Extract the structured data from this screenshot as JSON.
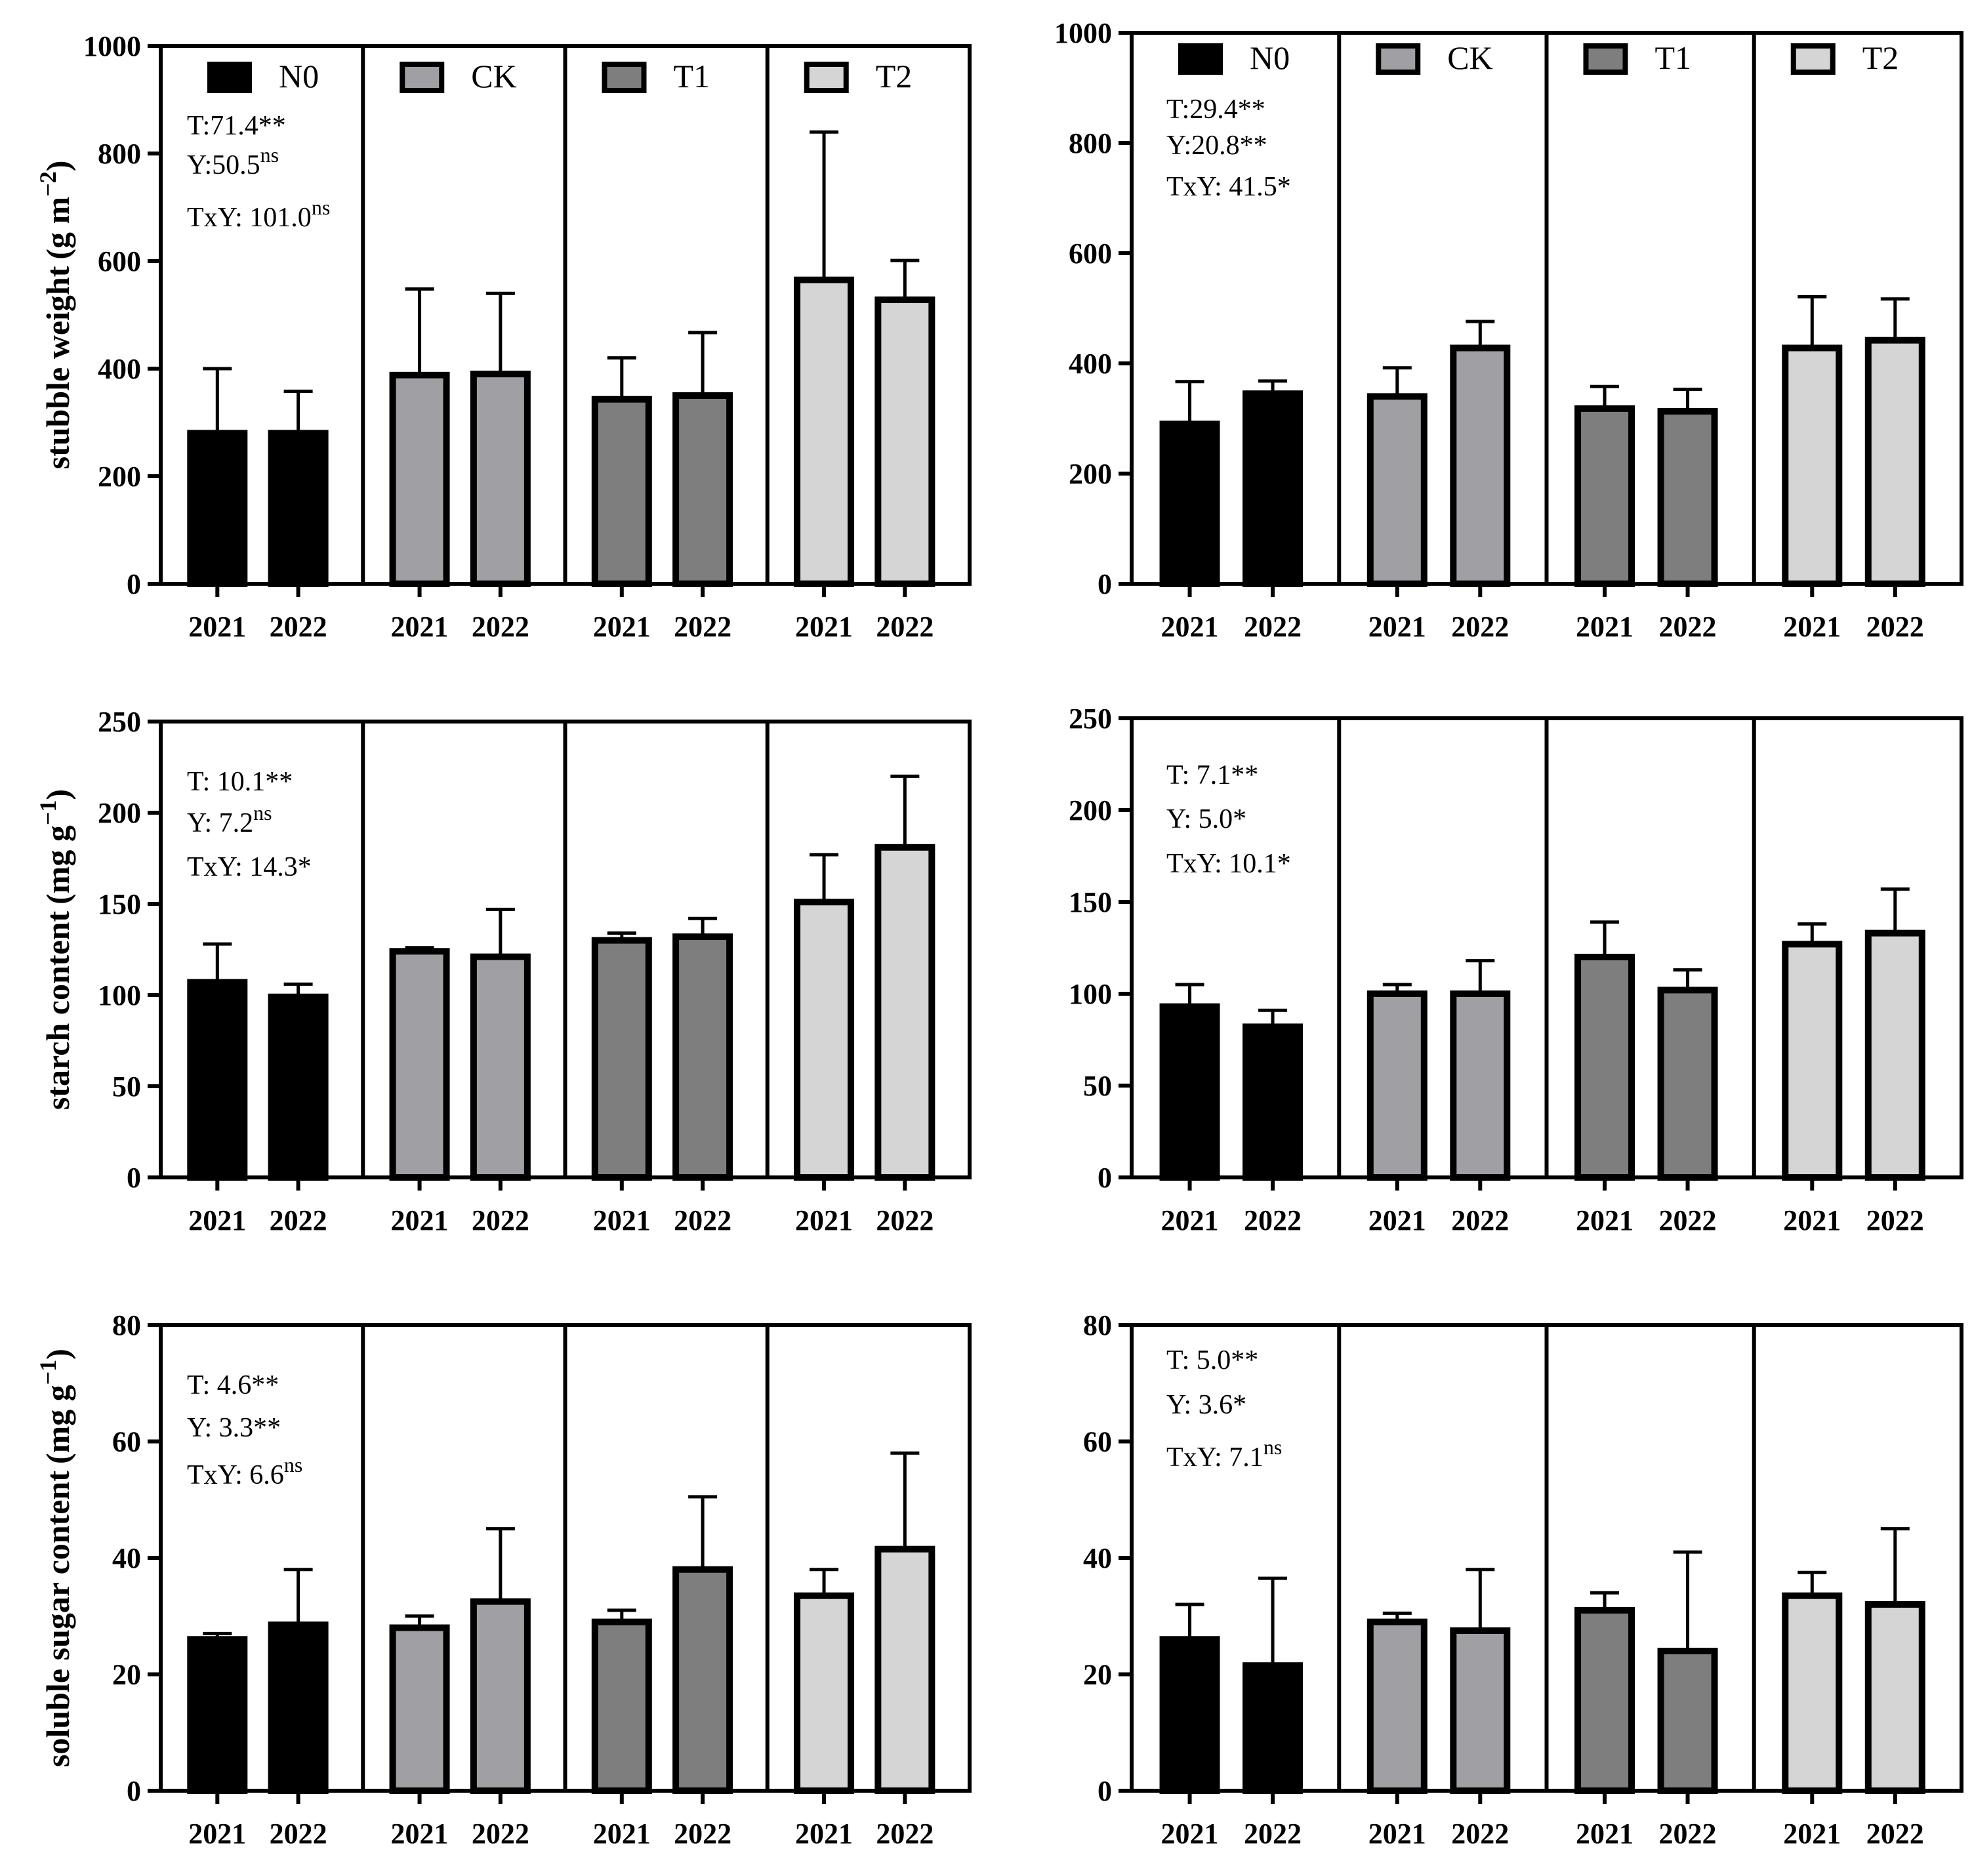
{
  "figure": {
    "group_labels": [
      "N0",
      "CK",
      "T1",
      "T2"
    ],
    "year_labels": [
      "2021",
      "2022"
    ],
    "group_colors": [
      "#000000",
      "#a0a0a4",
      "#7e7e7e",
      "#d5d5d5"
    ]
  },
  "chart_data": [
    {
      "type": "bar",
      "title": "",
      "ylabel_main": "stubble weight",
      "ylabel_unit": "(g m",
      "ylabel_sup": "−2",
      "ylabel_close": ")",
      "ylim": [
        0,
        1000
      ],
      "yticks": [
        "0",
        "200",
        "400",
        "600",
        "800",
        "1000"
      ],
      "legend": true,
      "annotations": [
        {
          "main": "T:71.4**",
          "sup": ""
        },
        {
          "main": "Y:50.5",
          "sup": "ns"
        },
        {
          "main": "TxY: 101.0",
          "sup": "ns"
        }
      ],
      "values": [
        [
          280,
          280
        ],
        [
          388,
          390
        ],
        [
          343,
          350
        ],
        [
          565,
          528
        ]
      ],
      "errors": [
        [
          120,
          78
        ],
        [
          160,
          150
        ],
        [
          77,
          117
        ],
        [
          275,
          73
        ]
      ]
    },
    {
      "type": "bar",
      "title": "",
      "ylabel_main": "",
      "ylabel_unit": "",
      "ylabel_sup": "",
      "ylabel_close": "",
      "ylim": [
        0,
        1000
      ],
      "yticks": [
        "0",
        "200",
        "400",
        "600",
        "800",
        "1000"
      ],
      "legend": true,
      "annotations": [
        {
          "main": "T:29.4**",
          "sup": ""
        },
        {
          "main": "Y:20.8**",
          "sup": ""
        },
        {
          "main": "TxY: 41.5*",
          "sup": ""
        }
      ],
      "values": [
        [
          290,
          345
        ],
        [
          340,
          428
        ],
        [
          318,
          313
        ],
        [
          428,
          442
        ]
      ],
      "errors": [
        [
          77,
          23
        ],
        [
          52,
          48
        ],
        [
          40,
          40
        ],
        [
          93,
          75
        ]
      ]
    },
    {
      "type": "bar",
      "title": "",
      "ylabel_main": "starch content",
      "ylabel_unit": "(mg g",
      "ylabel_sup": "−1",
      "ylabel_close": ")",
      "ylim": [
        0,
        250
      ],
      "yticks": [
        "0",
        "50",
        "100",
        "150",
        "200",
        "250"
      ],
      "legend": false,
      "annotations": [
        {
          "main": "T: 10.1**",
          "sup": ""
        },
        {
          "main": "Y: 7.2",
          "sup": "ns"
        },
        {
          "main": "TxY: 14.3*",
          "sup": ""
        }
      ],
      "values": [
        [
          107,
          99
        ],
        [
          124,
          121
        ],
        [
          130,
          132
        ],
        [
          151,
          181
        ]
      ],
      "errors": [
        [
          21,
          7
        ],
        [
          2,
          26
        ],
        [
          4,
          10
        ],
        [
          26,
          39
        ]
      ]
    },
    {
      "type": "bar",
      "title": "",
      "ylabel_main": "",
      "ylabel_unit": "",
      "ylabel_sup": "",
      "ylabel_close": "",
      "ylim": [
        0,
        250
      ],
      "yticks": [
        "0",
        "50",
        "100",
        "150",
        "200",
        "250"
      ],
      "legend": false,
      "annotations": [
        {
          "main": "T: 7.1**",
          "sup": ""
        },
        {
          "main": "Y: 5.0*",
          "sup": ""
        },
        {
          "main": "TxY: 10.1*",
          "sup": ""
        }
      ],
      "values": [
        [
          93,
          82
        ],
        [
          100,
          100
        ],
        [
          120,
          102
        ],
        [
          127,
          133
        ]
      ],
      "errors": [
        [
          12,
          9
        ],
        [
          5,
          18
        ],
        [
          19,
          11
        ],
        [
          11,
          24
        ]
      ]
    },
    {
      "type": "bar",
      "title": "",
      "ylabel_main": "soluble sugar content",
      "ylabel_unit": "(mg g",
      "ylabel_sup": "−1",
      "ylabel_close": ")",
      "ylim": [
        0,
        80
      ],
      "yticks": [
        "0",
        "20",
        "40",
        "60",
        "80"
      ],
      "legend": false,
      "annotations": [
        {
          "main": "T: 4.6**",
          "sup": ""
        },
        {
          "main": "Y: 3.3**",
          "sup": ""
        },
        {
          "main": "TxY: 6.6",
          "sup": "ns"
        }
      ],
      "values": [
        [
          26,
          28.5
        ],
        [
          28,
          32.5
        ],
        [
          29,
          38
        ],
        [
          33.5,
          41.5
        ]
      ],
      "errors": [
        [
          1,
          9.5
        ],
        [
          2,
          12.5
        ],
        [
          2,
          12.5
        ],
        [
          4.5,
          16.5
        ]
      ]
    },
    {
      "type": "bar",
      "title": "",
      "ylabel_main": "",
      "ylabel_unit": "",
      "ylabel_sup": "",
      "ylabel_close": "",
      "ylim": [
        0,
        80
      ],
      "yticks": [
        "0",
        "20",
        "40",
        "60",
        "80"
      ],
      "legend": false,
      "annotations": [
        {
          "main": "T: 5.0**",
          "sup": ""
        },
        {
          "main": "Y: 3.6*",
          "sup": ""
        },
        {
          "main": "TxY: 7.1",
          "sup": "ns"
        }
      ],
      "values": [
        [
          26,
          21.5
        ],
        [
          29,
          27.5
        ],
        [
          31,
          24
        ],
        [
          33.5,
          32
        ]
      ],
      "errors": [
        [
          6,
          15
        ],
        [
          1.5,
          10.5
        ],
        [
          3,
          17
        ],
        [
          4,
          13
        ]
      ]
    }
  ]
}
